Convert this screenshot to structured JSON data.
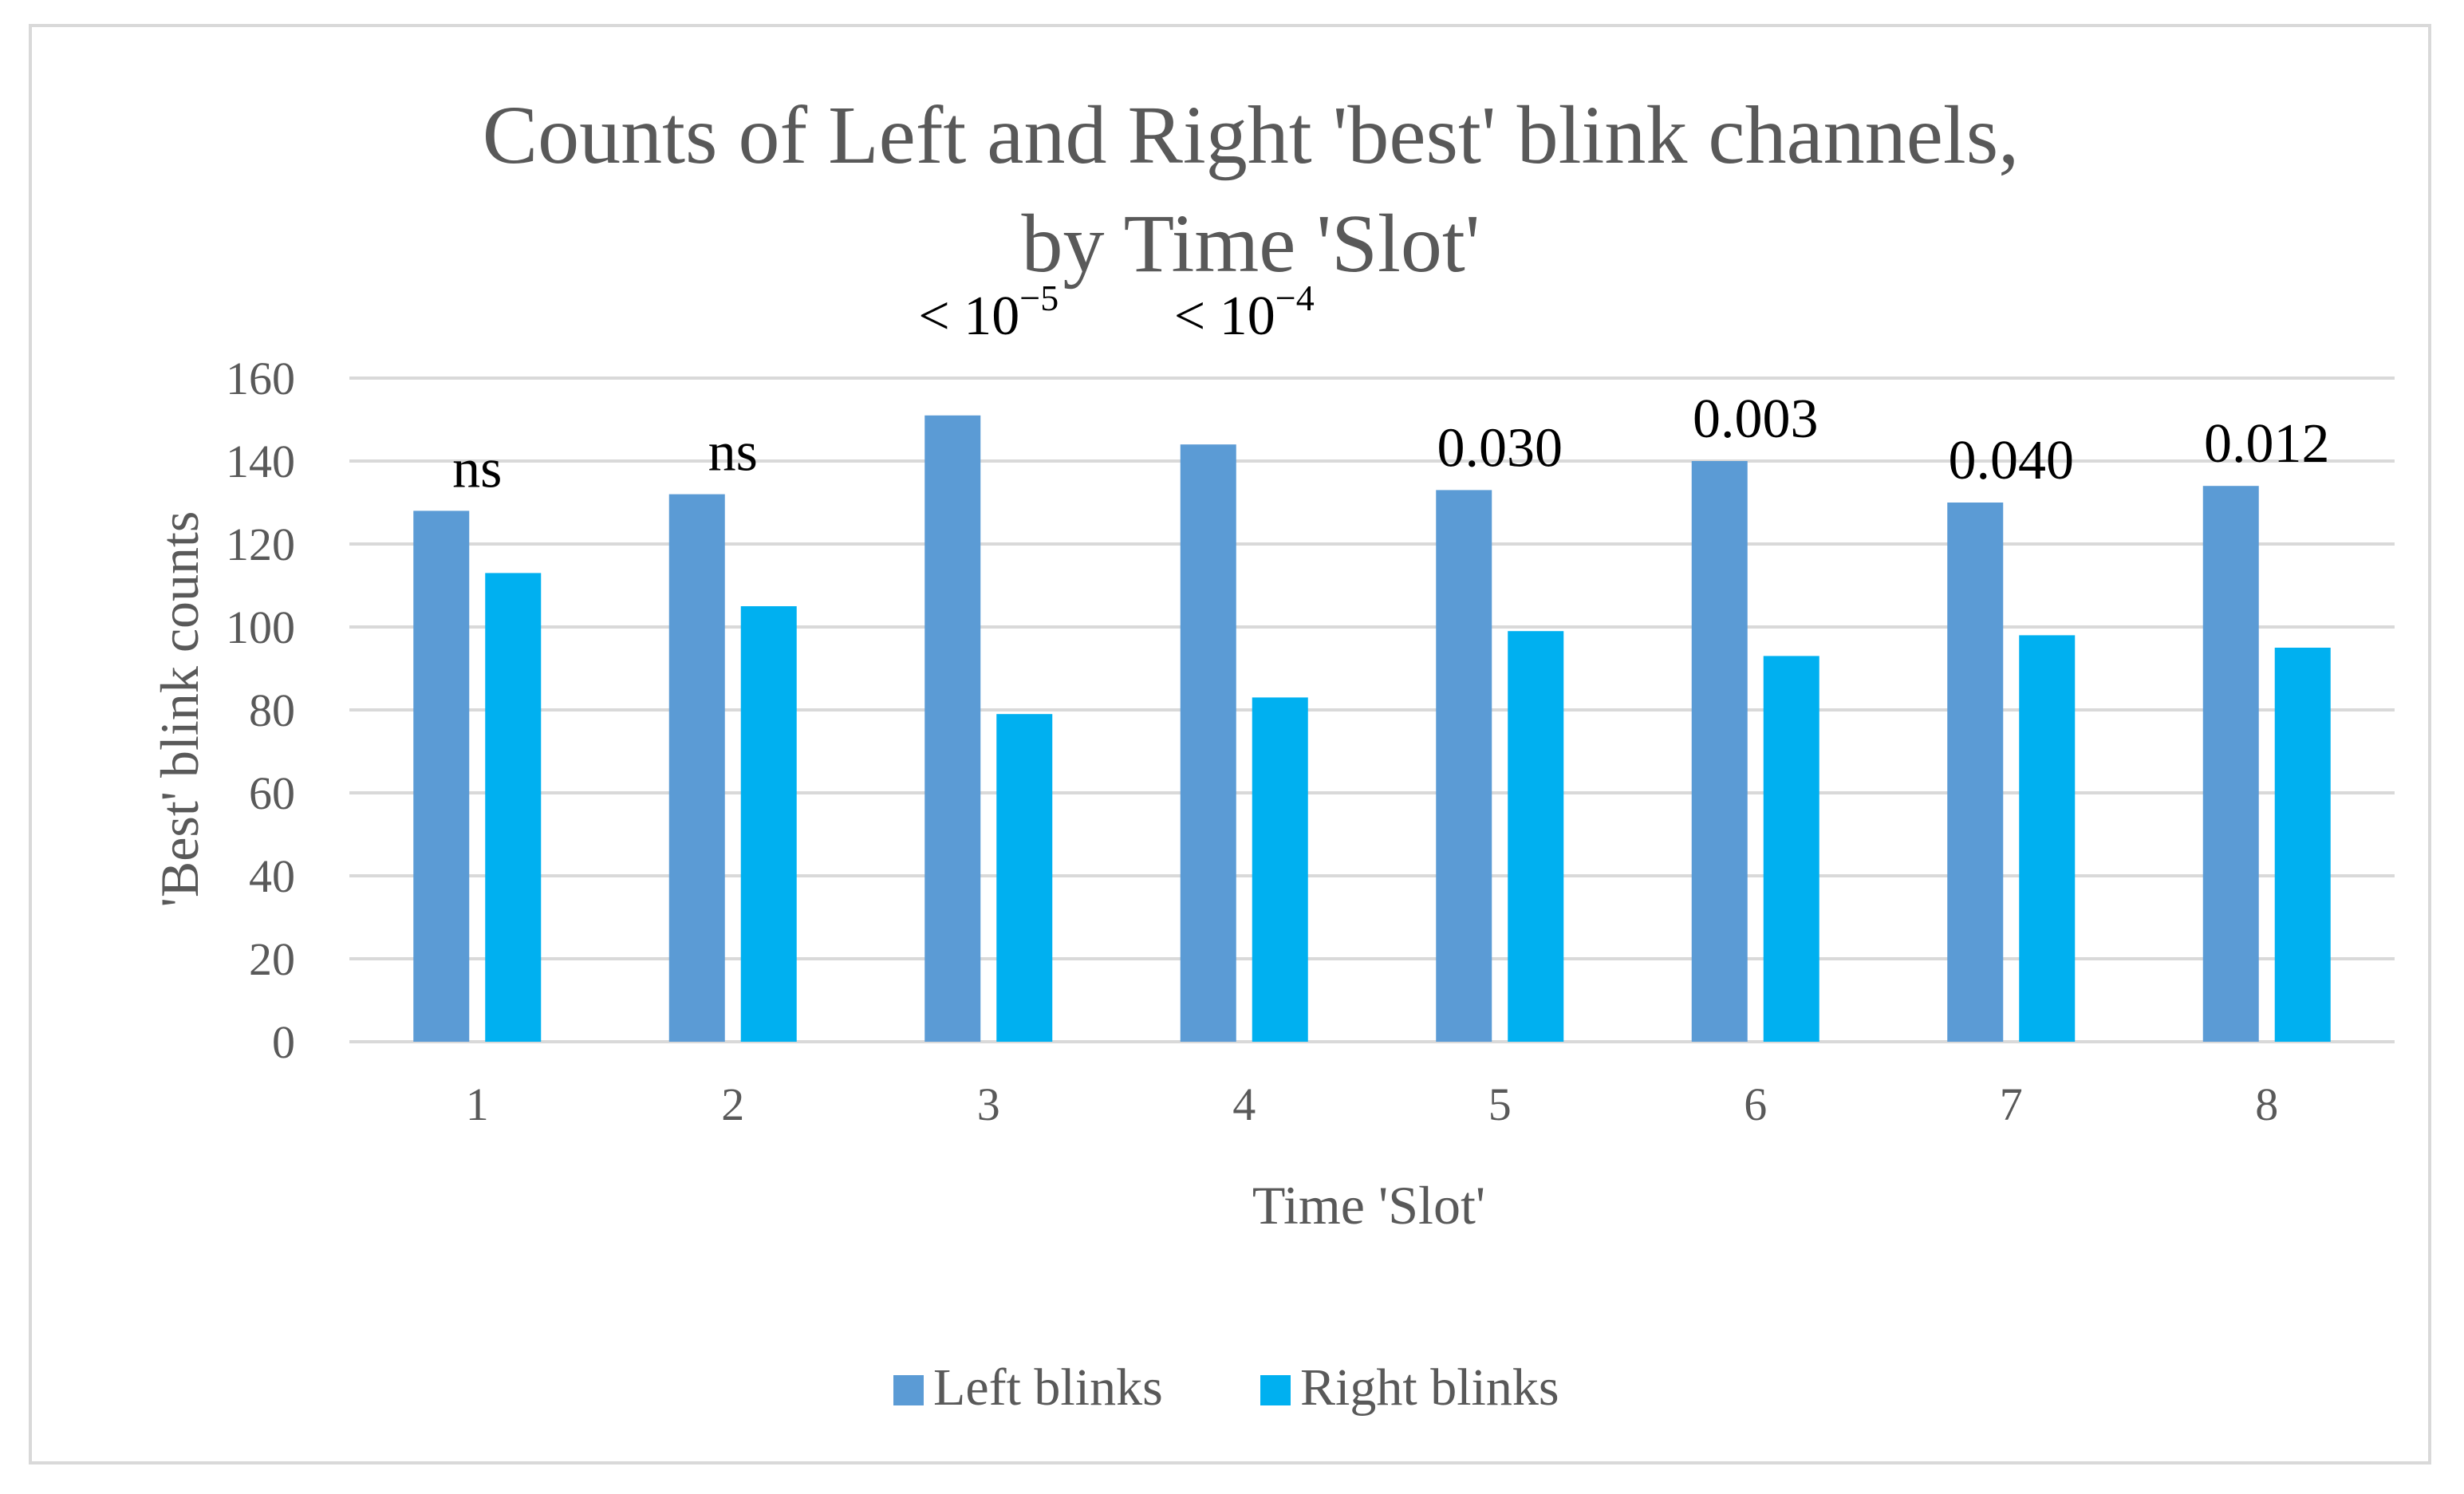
{
  "chart_data": {
    "type": "bar",
    "title_line1": "Counts of Left and Right 'best' blink channels,",
    "title_line2": "by Time 'Slot'",
    "xlabel": "Time 'Slot'",
    "ylabel": "'Best' blink counts",
    "ylim": [
      0,
      160
    ],
    "yticks": [
      0,
      20,
      40,
      60,
      80,
      100,
      120,
      140,
      160
    ],
    "categories": [
      "1",
      "2",
      "3",
      "4",
      "5",
      "6",
      "7",
      "8"
    ],
    "series": [
      {
        "name": "Left blinks",
        "color": "#5b9bd5",
        "values": [
          128,
          132,
          151,
          144,
          133,
          140,
          130,
          134
        ]
      },
      {
        "name": "Right blinks",
        "color": "#00b0f0",
        "values": [
          113,
          105,
          79,
          83,
          99,
          93,
          98,
          95
        ]
      }
    ],
    "annotations": [
      {
        "base": "ns",
        "exp": ""
      },
      {
        "base": "ns",
        "exp": ""
      },
      {
        "base": "< 10",
        "exp": "−5"
      },
      {
        "base": "< 10",
        "exp": "−4"
      },
      {
        "base": "0.030",
        "exp": ""
      },
      {
        "base": "0.003",
        "exp": ""
      },
      {
        "base": "0.040",
        "exp": ""
      },
      {
        "base": "0.012",
        "exp": ""
      }
    ],
    "grid": true,
    "legend_position": "bottom"
  }
}
